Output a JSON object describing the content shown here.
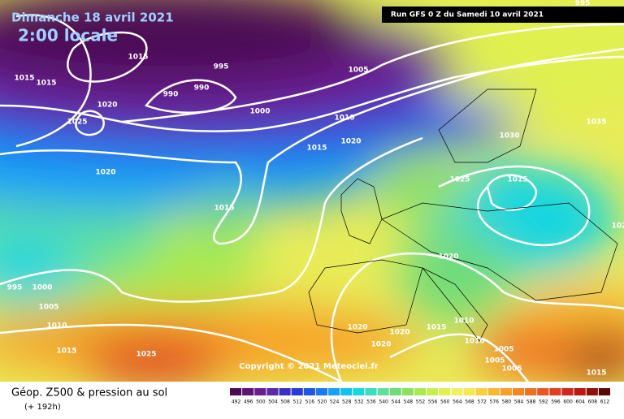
{
  "header": {
    "date": "Dimanche 18 avril 2021",
    "time": "2:00 locale",
    "run": "Run GFS 0 Z du Samedi 10 avril 2021"
  },
  "isobar_labels": [
    "1015",
    "1015",
    "1015",
    "995",
    "990",
    "990",
    "1020",
    "1025",
    "1005",
    "1000",
    "1010",
    "1020",
    "1015",
    "1030",
    "1035",
    "1020",
    "1025",
    "1015",
    "1015",
    "1020",
    "1000",
    "995",
    "1005",
    "1010",
    "1020",
    "1020",
    "1015",
    "1010",
    "1020",
    "1010",
    "1005",
    "1005",
    "1005",
    "1015",
    "1025",
    "1015",
    "995",
    "102"
  ],
  "copyright": "Copyright © 2021 Meteociel.fr",
  "footer": {
    "title": "Géop. Z500 & pression au sol",
    "lead": "(+ 192h)"
  },
  "scale": {
    "labels": [
      "492",
      "496",
      "500",
      "504",
      "508",
      "512",
      "516",
      "520",
      "524",
      "528",
      "532",
      "536",
      "540",
      "544",
      "548",
      "552",
      "556",
      "560",
      "564",
      "568",
      "572",
      "576",
      "580",
      "584",
      "588",
      "592",
      "596",
      "600",
      "604",
      "608",
      "612"
    ],
    "colors": [
      "#4b0a54",
      "#5e1472",
      "#6a1f8f",
      "#5a2aa8",
      "#3c2ec0",
      "#2a3ad8",
      "#1e56ea",
      "#1a7af2",
      "#16a0f6",
      "#10c2f0",
      "#18d6e0",
      "#3cdcc0",
      "#5ee09c",
      "#70dc78",
      "#8ee060",
      "#aaea50",
      "#c8f04c",
      "#e0f050",
      "#f0f060",
      "#f8e850",
      "#f8d040",
      "#f8b830",
      "#f8a028",
      "#f48820",
      "#f07020",
      "#e85820",
      "#e04020",
      "#d02818",
      "#b81810",
      "#901008",
      "#5a0804"
    ]
  }
}
